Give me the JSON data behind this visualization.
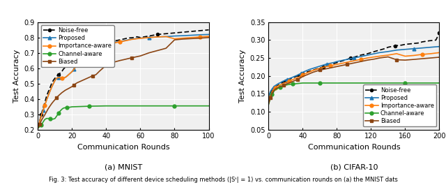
{
  "mnist": {
    "title": "(a) MNIST",
    "xlabel": "Communication Rounds",
    "ylabel": "Test Accuracy",
    "xlim": [
      0,
      100
    ],
    "ylim": [
      0.2,
      0.9
    ],
    "yticks": [
      0.2,
      0.3,
      0.4,
      0.5,
      0.6,
      0.7,
      0.8,
      0.9
    ],
    "xticks": [
      0,
      20,
      40,
      60,
      80,
      100
    ],
    "noise_free": {
      "x": [
        0,
        1,
        2,
        3,
        4,
        5,
        6,
        7,
        8,
        9,
        10,
        11,
        12,
        13,
        14,
        15,
        16,
        17,
        18,
        19,
        20,
        21,
        22,
        23,
        24,
        25,
        26,
        27,
        28,
        29,
        30,
        31,
        32,
        33,
        34,
        35,
        36,
        37,
        38,
        39,
        40,
        42,
        44,
        46,
        48,
        50,
        52,
        54,
        56,
        58,
        60,
        65,
        70,
        75,
        80,
        85,
        90,
        95,
        100
      ],
      "y": [
        0.21,
        0.255,
        0.3,
        0.34,
        0.375,
        0.415,
        0.445,
        0.47,
        0.5,
        0.52,
        0.535,
        0.548,
        0.558,
        0.568,
        0.578,
        0.595,
        0.605,
        0.615,
        0.62,
        0.628,
        0.638,
        0.645,
        0.655,
        0.662,
        0.668,
        0.673,
        0.68,
        0.688,
        0.695,
        0.7,
        0.705,
        0.71,
        0.718,
        0.725,
        0.73,
        0.738,
        0.745,
        0.75,
        0.756,
        0.762,
        0.768,
        0.772,
        0.776,
        0.78,
        0.785,
        0.79,
        0.795,
        0.798,
        0.8,
        0.805,
        0.8,
        0.81,
        0.82,
        0.825,
        0.83,
        0.835,
        0.84,
        0.845,
        0.85
      ]
    },
    "proposed": {
      "x": [
        0,
        1,
        2,
        3,
        4,
        5,
        6,
        7,
        8,
        9,
        10,
        11,
        12,
        13,
        14,
        15,
        16,
        17,
        18,
        19,
        20,
        21,
        22,
        23,
        24,
        25,
        26,
        27,
        28,
        29,
        30,
        31,
        32,
        33,
        34,
        35,
        36,
        37,
        38,
        39,
        40,
        42,
        44,
        46,
        48,
        50,
        55,
        60,
        65,
        70,
        75,
        80,
        85,
        90,
        95,
        100
      ],
      "y": [
        0.21,
        0.25,
        0.29,
        0.325,
        0.358,
        0.39,
        0.42,
        0.448,
        0.475,
        0.498,
        0.52,
        0.535,
        0.54,
        0.538,
        0.535,
        0.535,
        0.54,
        0.548,
        0.558,
        0.568,
        0.578,
        0.592,
        0.608,
        0.622,
        0.635,
        0.648,
        0.66,
        0.668,
        0.678,
        0.688,
        0.695,
        0.7,
        0.706,
        0.712,
        0.718,
        0.722,
        0.728,
        0.735,
        0.74,
        0.745,
        0.75,
        0.758,
        0.765,
        0.77,
        0.774,
        0.778,
        0.79,
        0.796,
        0.8,
        0.804,
        0.806,
        0.81,
        0.812,
        0.815,
        0.818,
        0.82
      ]
    },
    "importance_aware": {
      "x": [
        0,
        1,
        2,
        3,
        4,
        5,
        6,
        7,
        8,
        9,
        10,
        11,
        12,
        13,
        14,
        15,
        16,
        17,
        18,
        19,
        20,
        21,
        22,
        23,
        24,
        25,
        26,
        27,
        28,
        29,
        30,
        31,
        32,
        33,
        34,
        35,
        36,
        37,
        38,
        39,
        40,
        42,
        44,
        46,
        48,
        50,
        55,
        60,
        65,
        70,
        75,
        80,
        85,
        90,
        95,
        100
      ],
      "y": [
        0.21,
        0.25,
        0.29,
        0.325,
        0.358,
        0.39,
        0.42,
        0.448,
        0.475,
        0.498,
        0.52,
        0.535,
        0.54,
        0.538,
        0.535,
        0.535,
        0.54,
        0.548,
        0.558,
        0.568,
        0.578,
        0.592,
        0.608,
        0.622,
        0.635,
        0.645,
        0.655,
        0.663,
        0.672,
        0.68,
        0.688,
        0.694,
        0.7,
        0.706,
        0.712,
        0.718,
        0.724,
        0.73,
        0.736,
        0.742,
        0.748,
        0.756,
        0.762,
        0.768,
        0.772,
        0.776,
        0.788,
        0.795,
        0.8,
        0.804,
        0.806,
        0.792,
        0.796,
        0.8,
        0.804,
        0.808
      ]
    },
    "channel_aware": {
      "x": [
        0,
        1,
        2,
        3,
        4,
        5,
        6,
        7,
        8,
        9,
        10,
        11,
        12,
        13,
        14,
        15,
        16,
        17,
        18,
        19,
        20,
        25,
        30,
        40,
        50,
        60,
        70,
        80,
        90,
        100
      ],
      "y": [
        0.21,
        0.218,
        0.23,
        0.248,
        0.265,
        0.272,
        0.272,
        0.27,
        0.268,
        0.268,
        0.272,
        0.288,
        0.305,
        0.32,
        0.332,
        0.34,
        0.342,
        0.344,
        0.345,
        0.346,
        0.348,
        0.35,
        0.352,
        0.354,
        0.354,
        0.354,
        0.354,
        0.354,
        0.354,
        0.354
      ]
    },
    "biased": {
      "x": [
        0,
        1,
        2,
        3,
        4,
        5,
        6,
        7,
        8,
        9,
        10,
        11,
        12,
        13,
        14,
        15,
        16,
        17,
        18,
        19,
        20,
        21,
        22,
        23,
        24,
        25,
        26,
        27,
        28,
        29,
        30,
        32,
        34,
        36,
        38,
        40,
        42,
        44,
        46,
        48,
        50,
        55,
        60,
        65,
        70,
        75,
        80,
        85,
        90,
        95,
        100
      ],
      "y": [
        0.21,
        0.235,
        0.258,
        0.278,
        0.295,
        0.315,
        0.335,
        0.352,
        0.368,
        0.382,
        0.395,
        0.408,
        0.42,
        0.43,
        0.44,
        0.448,
        0.456,
        0.462,
        0.468,
        0.474,
        0.48,
        0.49,
        0.498,
        0.505,
        0.51,
        0.515,
        0.52,
        0.525,
        0.53,
        0.535,
        0.54,
        0.55,
        0.558,
        0.58,
        0.6,
        0.618,
        0.63,
        0.638,
        0.644,
        0.65,
        0.655,
        0.668,
        0.68,
        0.7,
        0.715,
        0.73,
        0.785,
        0.79,
        0.793,
        0.796,
        0.8
      ]
    }
  },
  "cifar": {
    "title": "(b) CIFAR-10",
    "xlabel": "Communication Rounds",
    "ylabel": "Test Accuracy",
    "xlim": [
      0,
      200
    ],
    "ylim": [
      0.05,
      0.35
    ],
    "yticks": [
      0.05,
      0.1,
      0.15,
      0.2,
      0.25,
      0.3,
      0.35
    ],
    "xticks": [
      0,
      40,
      80,
      120,
      160,
      200
    ],
    "noise_free": {
      "x": [
        0,
        2,
        4,
        6,
        8,
        10,
        12,
        14,
        16,
        18,
        20,
        22,
        24,
        26,
        28,
        30,
        32,
        34,
        36,
        38,
        40,
        44,
        48,
        52,
        56,
        60,
        64,
        68,
        72,
        76,
        80,
        84,
        88,
        92,
        96,
        100,
        108,
        116,
        124,
        130,
        136,
        140,
        148,
        156,
        160,
        168,
        176,
        180,
        188,
        196,
        200
      ],
      "y": [
        0.135,
        0.148,
        0.156,
        0.163,
        0.168,
        0.172,
        0.175,
        0.178,
        0.181,
        0.183,
        0.185,
        0.188,
        0.19,
        0.192,
        0.194,
        0.196,
        0.198,
        0.2,
        0.202,
        0.204,
        0.206,
        0.21,
        0.213,
        0.216,
        0.219,
        0.222,
        0.225,
        0.228,
        0.231,
        0.234,
        0.237,
        0.24,
        0.243,
        0.246,
        0.25,
        0.252,
        0.258,
        0.262,
        0.268,
        0.272,
        0.276,
        0.28,
        0.284,
        0.286,
        0.288,
        0.29,
        0.292,
        0.295,
        0.298,
        0.3,
        0.32
      ]
    },
    "proposed": {
      "x": [
        0,
        2,
        4,
        6,
        8,
        10,
        12,
        14,
        16,
        18,
        20,
        22,
        24,
        26,
        28,
        30,
        32,
        34,
        36,
        38,
        40,
        44,
        48,
        52,
        56,
        60,
        64,
        68,
        72,
        76,
        80,
        84,
        88,
        92,
        96,
        100,
        108,
        116,
        124,
        130,
        140,
        150,
        160,
        170,
        180,
        190,
        200
      ],
      "y": [
        0.14,
        0.155,
        0.163,
        0.169,
        0.173,
        0.176,
        0.179,
        0.181,
        0.184,
        0.186,
        0.188,
        0.19,
        0.192,
        0.194,
        0.196,
        0.198,
        0.2,
        0.202,
        0.204,
        0.207,
        0.21,
        0.214,
        0.218,
        0.221,
        0.224,
        0.227,
        0.23,
        0.233,
        0.235,
        0.237,
        0.24,
        0.242,
        0.244,
        0.246,
        0.248,
        0.25,
        0.254,
        0.258,
        0.262,
        0.265,
        0.268,
        0.272,
        0.274,
        0.276,
        0.278,
        0.28,
        0.282
      ]
    },
    "importance_aware": {
      "x": [
        0,
        2,
        4,
        6,
        8,
        10,
        12,
        14,
        16,
        18,
        20,
        22,
        24,
        26,
        28,
        30,
        32,
        34,
        36,
        38,
        40,
        44,
        48,
        52,
        56,
        60,
        64,
        68,
        72,
        76,
        80,
        84,
        88,
        92,
        96,
        100,
        108,
        116,
        124,
        130,
        140,
        150,
        160,
        170,
        180,
        190,
        200
      ],
      "y": [
        0.13,
        0.145,
        0.155,
        0.162,
        0.167,
        0.17,
        0.173,
        0.175,
        0.177,
        0.179,
        0.181,
        0.183,
        0.185,
        0.187,
        0.189,
        0.191,
        0.193,
        0.195,
        0.197,
        0.2,
        0.203,
        0.207,
        0.211,
        0.215,
        0.218,
        0.221,
        0.224,
        0.226,
        0.228,
        0.23,
        0.232,
        0.234,
        0.236,
        0.238,
        0.24,
        0.242,
        0.246,
        0.25,
        0.253,
        0.255,
        0.258,
        0.262,
        0.255,
        0.257,
        0.26,
        0.262,
        0.265
      ]
    },
    "channel_aware": {
      "x": [
        0,
        2,
        4,
        6,
        8,
        10,
        12,
        14,
        16,
        18,
        20,
        24,
        28,
        32,
        36,
        40,
        50,
        60,
        80,
        100,
        120,
        140,
        160,
        180,
        200
      ],
      "y": [
        0.119,
        0.136,
        0.148,
        0.156,
        0.161,
        0.164,
        0.166,
        0.168,
        0.17,
        0.172,
        0.174,
        0.176,
        0.177,
        0.178,
        0.179,
        0.18,
        0.18,
        0.18,
        0.18,
        0.18,
        0.18,
        0.18,
        0.18,
        0.18,
        0.18
      ]
    },
    "biased": {
      "x": [
        0,
        2,
        4,
        6,
        8,
        10,
        12,
        14,
        16,
        18,
        20,
        22,
        24,
        26,
        28,
        30,
        32,
        34,
        36,
        38,
        40,
        44,
        48,
        52,
        56,
        60,
        64,
        68,
        72,
        76,
        80,
        84,
        88,
        92,
        96,
        100,
        108,
        116,
        124,
        130,
        140,
        150,
        160,
        170,
        180,
        190,
        200
      ],
      "y": [
        0.121,
        0.138,
        0.15,
        0.158,
        0.163,
        0.166,
        0.168,
        0.17,
        0.172,
        0.174,
        0.176,
        0.178,
        0.18,
        0.182,
        0.184,
        0.186,
        0.188,
        0.19,
        0.192,
        0.195,
        0.198,
        0.202,
        0.206,
        0.21,
        0.213,
        0.216,
        0.218,
        0.22,
        0.222,
        0.224,
        0.226,
        0.228,
        0.23,
        0.232,
        0.234,
        0.236,
        0.24,
        0.244,
        0.247,
        0.25,
        0.253,
        0.245,
        0.244,
        0.246,
        0.248,
        0.25,
        0.252
      ]
    }
  },
  "caption": "Fig. 3: Test accuracy of different device scheduling methods (|Sᵗ| = 1) vs. communication rounds on (a) the MNIST dats",
  "colors": {
    "noise_free": "#000000",
    "proposed": "#1f77b4",
    "importance_aware": "#ff7f0e",
    "channel_aware": "#2ca02c",
    "biased": "#8B4513"
  }
}
